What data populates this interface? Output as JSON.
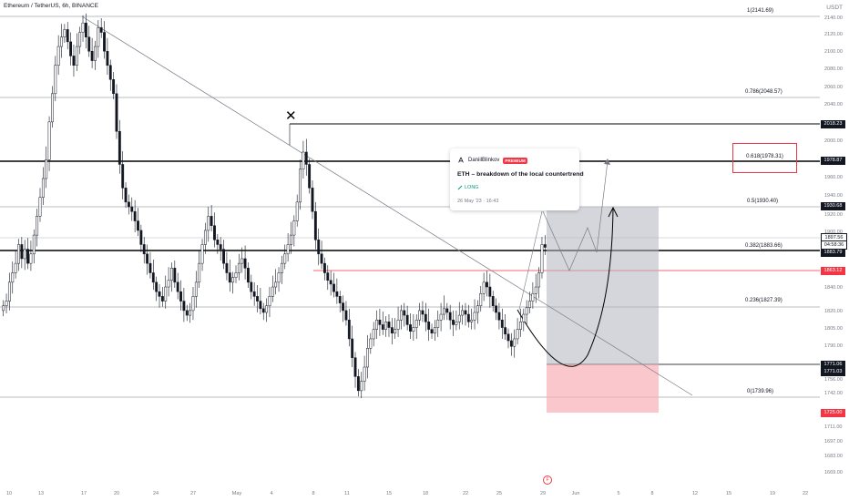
{
  "symbol": {
    "title": "Ethereum / TetherUS, 6h, BINANCE",
    "currency": "USDT"
  },
  "fib_levels": [
    {
      "ratio": "1",
      "price": 2141.69,
      "label": "1(2141.69)"
    },
    {
      "ratio": "0.786",
      "price": 2048.57,
      "label": "0.786(2048.57)"
    },
    {
      "ratio": "0.618",
      "price": 1978.31,
      "label": "0.618(1978.31)"
    },
    {
      "ratio": "0.5",
      "price": 1930.4,
      "label": "0.5(1930.40)"
    },
    {
      "ratio": "0.382",
      "price": 1883.66,
      "label": "0.382(1883.66)"
    },
    {
      "ratio": "0.236",
      "price": 1827.39,
      "label": "0.236(1827.39)"
    },
    {
      "ratio": "0",
      "price": 1739.96,
      "label": "0(1739.96)"
    }
  ],
  "price_axis": {
    "ticks": [
      "2140.00",
      "2120.00",
      "2100.00",
      "2080.00",
      "2060.00",
      "2040.00",
      "2020.00",
      "2000.00",
      "1980.00",
      "1960.00",
      "1940.00",
      "1920.00",
      "1900.00",
      "1880.00",
      "1860.00",
      "1840.00",
      "1820.00",
      "1805.00",
      "1790.00",
      "1771.00",
      "1756.00",
      "1742.00",
      "1725.00",
      "1711.00",
      "1697.00",
      "1683.00",
      "1669.00"
    ],
    "tags": [
      {
        "text": "2018.23",
        "style": "dark"
      },
      {
        "text": "1978.87",
        "style": "dark"
      },
      {
        "text": "1930.68",
        "style": "dark"
      },
      {
        "text": "1897.56",
        "style": "box"
      },
      {
        "text": "04:58:36",
        "style": "box"
      },
      {
        "text": "1883.79",
        "style": "dark"
      },
      {
        "text": "1863.12",
        "style": "red"
      },
      {
        "text": "1771.06",
        "style": "dark"
      },
      {
        "text": "1771.03",
        "style": "dark"
      },
      {
        "text": "1725.00",
        "style": "red"
      }
    ]
  },
  "time_axis": [
    "10",
    "13",
    "17",
    "20",
    "24",
    "27",
    "May",
    "4",
    "8",
    "11",
    "15",
    "18",
    "22",
    "25",
    "29",
    "Jun",
    "5",
    "8",
    "12",
    "15",
    "19",
    "22"
  ],
  "idea_popup": {
    "author": "DaniilBlinkov",
    "badge": "PREMIUM",
    "title": "ETH – breakdown of the local countertrend",
    "direction": "LONG",
    "date": "26 May '23 · 16:43"
  },
  "marker": {
    "symbol": "✕"
  },
  "event_icon": {
    "symbol": "F"
  },
  "colors": {
    "up": "#131722",
    "down": "#131722",
    "accent_red": "#f23645",
    "gray_zone": "#b2b5be",
    "pink_zone": "#f7a9b0",
    "long_green": "#089981"
  },
  "chart_data": {
    "type": "candlestick",
    "series": "ETHUSDT 6h",
    "ylim": [
      1660,
      2150
    ],
    "candles": []
  }
}
